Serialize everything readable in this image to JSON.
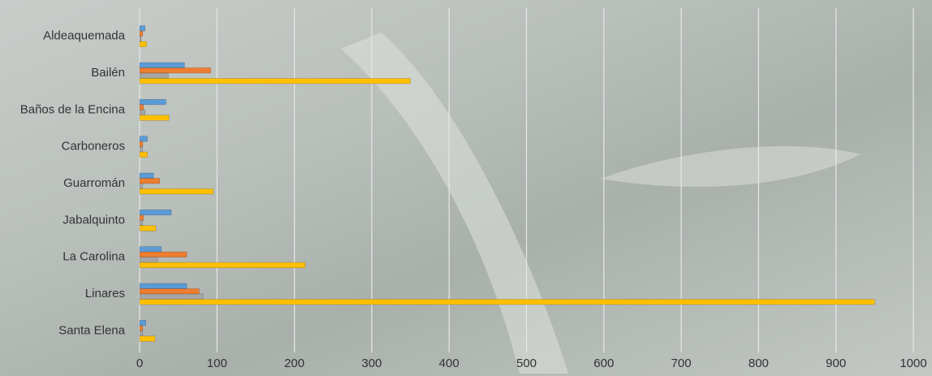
{
  "chart_data": {
    "type": "hbar",
    "categories": [
      "Aldeaquemada",
      "Bailén",
      "Baños de la Encina",
      "Carboneros",
      "Guarromán",
      "Jabalquinto",
      "La Carolina",
      "Linares",
      "Santa Elena"
    ],
    "series": [
      {
        "color": "#5b9bd5",
        "values": [
          7,
          58,
          34,
          10,
          18,
          41,
          28,
          61,
          8
        ]
      },
      {
        "color": "#ed7d31",
        "values": [
          4,
          92,
          5,
          4,
          26,
          5,
          61,
          77,
          4
        ]
      },
      {
        "color": "#a5a5a5",
        "values": [
          2,
          37,
          7,
          4,
          4,
          4,
          23,
          82,
          4
        ]
      },
      {
        "color": "#ffc000",
        "values": [
          9,
          350,
          38,
          10,
          95,
          21,
          214,
          950,
          20
        ]
      }
    ],
    "xlim": [
      0,
      1000
    ],
    "xticks": [
      0,
      100,
      200,
      300,
      400,
      500,
      600,
      700,
      800,
      900,
      1000
    ],
    "grid": true
  }
}
